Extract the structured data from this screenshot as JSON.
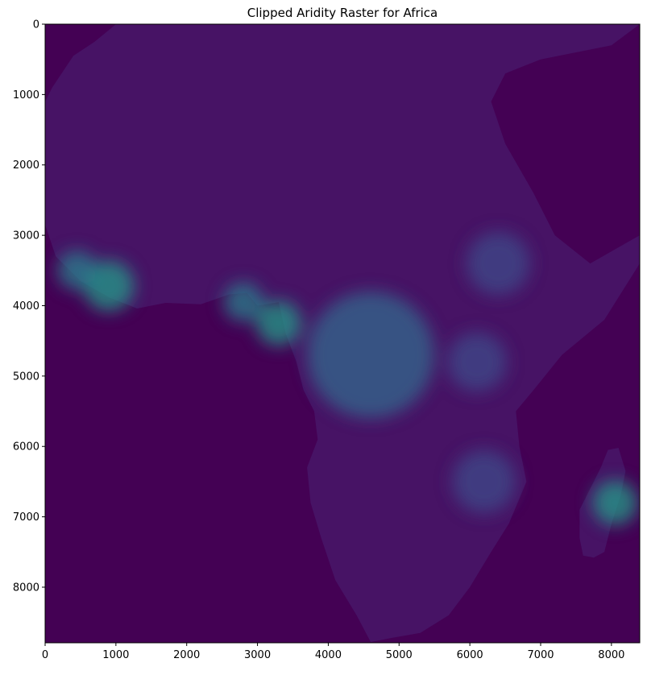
{
  "chart_data": {
    "type": "heatmap",
    "title": "Clipped Aridity Raster for Africa",
    "xlabel": "",
    "ylabel": "",
    "x_range": [
      0,
      8400
    ],
    "y_range": [
      0,
      8790
    ],
    "y_inverted": true,
    "x_ticks": [
      0,
      1000,
      2000,
      3000,
      4000,
      5000,
      6000,
      7000,
      8000
    ],
    "y_ticks": [
      0,
      1000,
      2000,
      3000,
      4000,
      5000,
      6000,
      7000,
      8000
    ],
    "grid": false,
    "colormap": "viridis",
    "colors": {
      "background": "#440154",
      "low": "#471365",
      "mid_low": "#3e4a89",
      "mid": "#31688e",
      "high": "#26828e",
      "highest": "#1f9e89"
    },
    "regions": [
      {
        "name": "africa-mainland",
        "value_level": "low",
        "outline": [
          [
            0,
            2850
          ],
          [
            150,
            3300
          ],
          [
            500,
            3650
          ],
          [
            900,
            3880
          ],
          [
            1300,
            4040
          ],
          [
            1700,
            3960
          ],
          [
            2200,
            3980
          ],
          [
            2600,
            3840
          ],
          [
            2850,
            3820
          ],
          [
            3000,
            4000
          ],
          [
            3300,
            3950
          ],
          [
            3400,
            4400
          ],
          [
            3550,
            4800
          ],
          [
            3650,
            5200
          ],
          [
            3800,
            5500
          ],
          [
            3850,
            5900
          ],
          [
            3700,
            6300
          ],
          [
            3750,
            6800
          ],
          [
            3900,
            7300
          ],
          [
            4100,
            7900
          ],
          [
            4400,
            8400
          ],
          [
            4600,
            8780
          ],
          [
            4900,
            8720
          ],
          [
            5300,
            8650
          ],
          [
            5700,
            8400
          ],
          [
            6000,
            8000
          ],
          [
            6300,
            7500
          ],
          [
            6550,
            7100
          ],
          [
            6800,
            6500
          ],
          [
            6700,
            6000
          ],
          [
            6650,
            5500
          ],
          [
            6900,
            5200
          ],
          [
            7300,
            4700
          ],
          [
            7900,
            4200
          ],
          [
            8400,
            3400
          ],
          [
            8400,
            3000
          ],
          [
            7700,
            3400
          ],
          [
            7200,
            3000
          ],
          [
            6900,
            2400
          ],
          [
            6500,
            1700
          ],
          [
            6300,
            1100
          ],
          [
            6500,
            700
          ],
          [
            7000,
            500
          ],
          [
            8000,
            300
          ],
          [
            8400,
            0
          ],
          [
            1000,
            0
          ],
          [
            700,
            250
          ],
          [
            400,
            450
          ],
          [
            100,
            900
          ],
          [
            0,
            1100
          ]
        ]
      },
      {
        "name": "madagascar",
        "value_level": "low",
        "outline": [
          [
            7550,
            6900
          ],
          [
            7700,
            6600
          ],
          [
            7850,
            6300
          ],
          [
            7950,
            6050
          ],
          [
            8100,
            6020
          ],
          [
            8200,
            6350
          ],
          [
            8130,
            6700
          ],
          [
            8000,
            7100
          ],
          [
            7900,
            7500
          ],
          [
            7750,
            7580
          ],
          [
            7600,
            7550
          ],
          [
            7550,
            7300
          ]
        ]
      }
    ],
    "humid_zones": [
      {
        "name": "west-africa-coast",
        "cx": 900,
        "cy": 3720,
        "r": 360,
        "level": "highest"
      },
      {
        "name": "liberia-coast",
        "cx": 450,
        "cy": 3500,
        "r": 280,
        "level": "high"
      },
      {
        "name": "cameroon-coast",
        "cx": 3300,
        "cy": 4250,
        "r": 320,
        "level": "highest"
      },
      {
        "name": "niger-delta",
        "cx": 2800,
        "cy": 3950,
        "r": 280,
        "level": "high"
      },
      {
        "name": "congo-basin",
        "cx": 4600,
        "cy": 4700,
        "r": 900,
        "level": "mid"
      },
      {
        "name": "east-africa-highlands",
        "cx": 6100,
        "cy": 4800,
        "r": 420,
        "level": "mid_low"
      },
      {
        "name": "ethiopian-highlands",
        "cx": 6400,
        "cy": 3400,
        "r": 450,
        "level": "mid_low"
      },
      {
        "name": "southern-africa-east",
        "cx": 6200,
        "cy": 6500,
        "r": 450,
        "level": "mid_low"
      },
      {
        "name": "madagascar-east",
        "cx": 8050,
        "cy": 6800,
        "r": 320,
        "level": "highest"
      }
    ]
  }
}
